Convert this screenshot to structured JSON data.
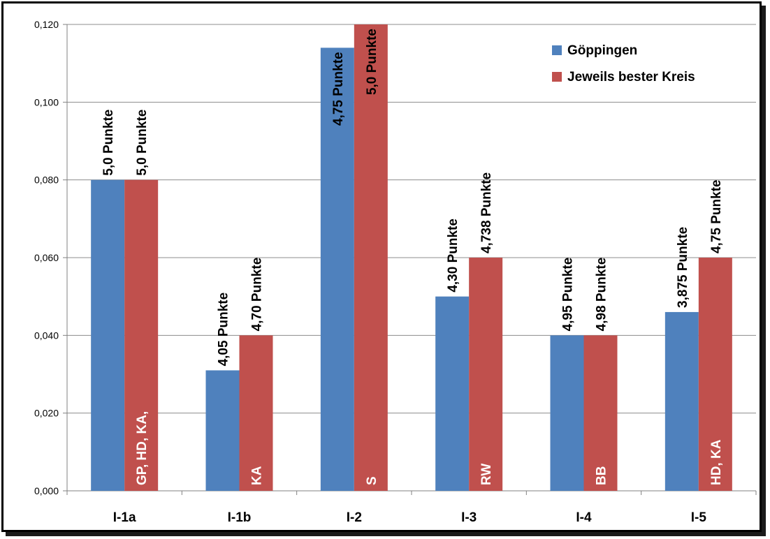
{
  "chart_data": {
    "type": "bar",
    "categories": [
      "I-1a",
      "I-1b",
      "I-2",
      "I-3",
      "I-4",
      "I-5"
    ],
    "series": [
      {
        "name": "Göppingen",
        "color": "#4F81BD",
        "values": [
          0.08,
          0.031,
          0.114,
          0.05,
          0.04,
          0.046
        ],
        "labels": [
          "5,0 Punkte",
          "4,05 Punkte",
          "4,75 Punkte",
          "4,30 Punkte",
          "4,95 Punkte",
          "3,875 Punkte"
        ]
      },
      {
        "name": "Jeweils bester Kreis",
        "color": "#C0504D",
        "values": [
          0.08,
          0.04,
          0.12,
          0.06,
          0.04,
          0.06
        ],
        "labels": [
          "5,0 Punkte",
          "4,70 Punkte",
          "5,0 Punkte",
          "4,738 Punkte",
          "4,98 Punkte",
          "4,75 Punkte"
        ],
        "inner_labels": [
          "GP, HD, KA,",
          "KA",
          "S",
          "RW",
          "BB",
          "HD, KA"
        ]
      }
    ],
    "yticks": [
      "0,000",
      "0,020",
      "0,040",
      "0,060",
      "0,080",
      "0,100",
      "0,120"
    ],
    "ylim": [
      0,
      0.12
    ],
    "grid": true,
    "legend": "top-right",
    "title": "",
    "xlabel": "",
    "ylabel": ""
  }
}
